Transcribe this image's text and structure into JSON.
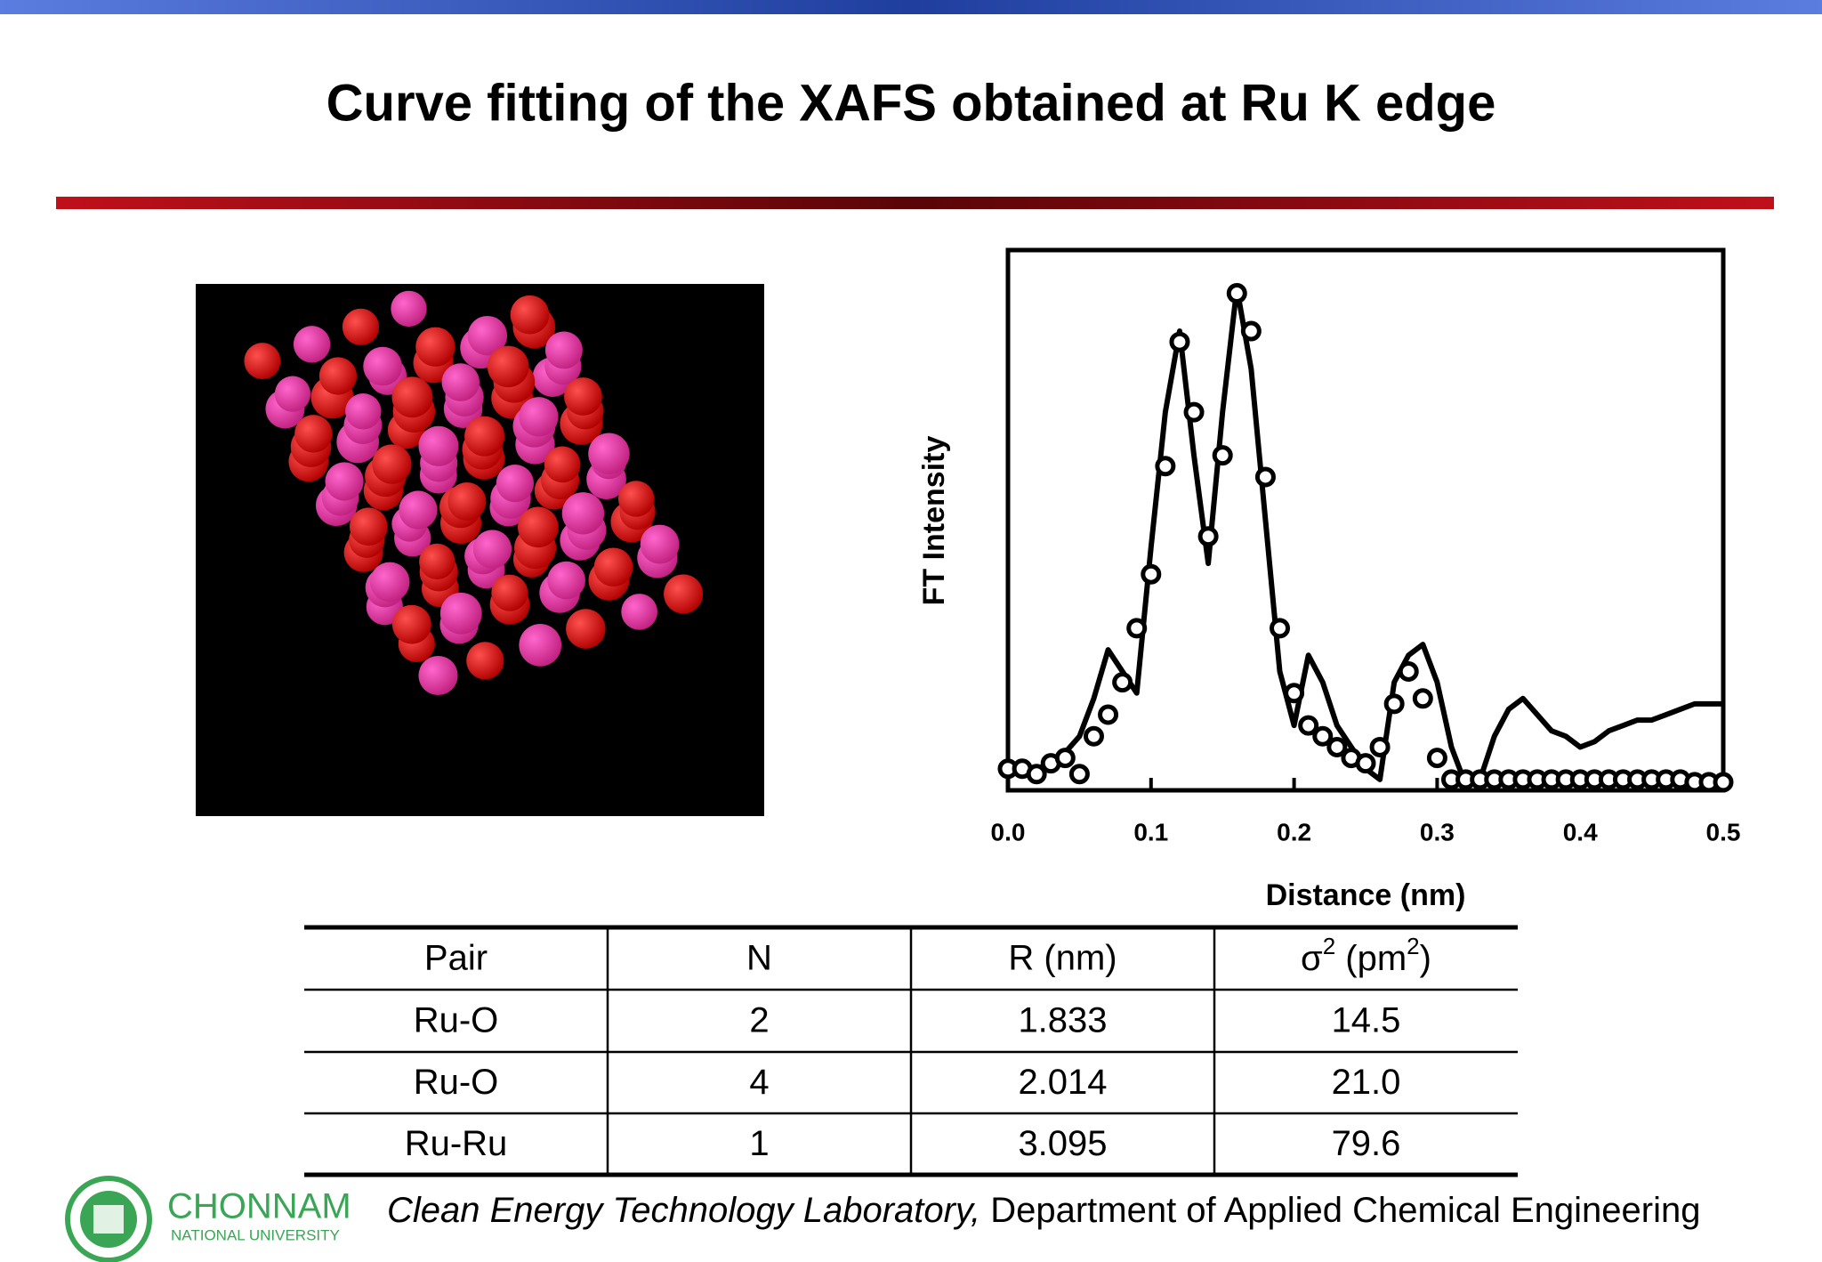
{
  "title": "Curve fitting of the XAFS obtained at Ru K edge",
  "chart_data": {
    "type": "line",
    "ylabel": "FT Intensity",
    "xlabel": "Distance (nm)",
    "xlim": [
      0,
      0.5
    ],
    "xticks": [
      {
        "value": 0,
        "label": "0.0"
      },
      0.1,
      0.2,
      0.3,
      0.4,
      0.5
    ],
    "ylim": [
      0,
      1
    ],
    "x": [
      0,
      0.01,
      0.02,
      0.03,
      0.04,
      0.05,
      0.06,
      0.07,
      0.08,
      0.09,
      0.1,
      0.11,
      0.12,
      0.13,
      0.14,
      0.15,
      0.16,
      0.17,
      0.18,
      0.19,
      0.2,
      0.21,
      0.22,
      0.23,
      0.24,
      0.25,
      0.26,
      0.27,
      0.28,
      0.29,
      0.3,
      0.31,
      0.32,
      0.33,
      0.34,
      0.35,
      0.36,
      0.37,
      0.38,
      0.39,
      0.4,
      0.41,
      0.42,
      0.43,
      0.44,
      0.45,
      0.46,
      0.47,
      0.48,
      0.49,
      0.5
    ],
    "series": [
      {
        "color": "#000000",
        "mode": "line",
        "values": [
          0.04,
          0.03,
          0.04,
          0.05,
          0.07,
          0.1,
          0.17,
          0.26,
          0.22,
          0.18,
          0.45,
          0.7,
          0.85,
          0.62,
          0.42,
          0.7,
          0.93,
          0.78,
          0.5,
          0.22,
          0.12,
          0.25,
          0.2,
          0.12,
          0.08,
          0.04,
          0.02,
          0.2,
          0.25,
          0.27,
          0.2,
          0.08,
          0.01,
          0.02,
          0.1,
          0.15,
          0.17,
          0.14,
          0.11,
          0.1,
          0.08,
          0.09,
          0.11,
          0.12,
          0.13,
          0.13,
          0.14,
          0.15,
          0.16,
          0.16,
          0.16
        ]
      },
      {
        "color": "#000000",
        "mode": "markers",
        "values": [
          0.04,
          0.04,
          0.03,
          0.05,
          0.06,
          0.03,
          0.1,
          0.14,
          0.2,
          0.3,
          0.4,
          0.6,
          0.83,
          0.7,
          0.47,
          0.62,
          0.92,
          0.85,
          0.58,
          0.3,
          0.18,
          0.12,
          0.1,
          0.08,
          0.06,
          0.05,
          0.08,
          0.16,
          0.22,
          0.17,
          0.06,
          0.02,
          0.02,
          0.02,
          0.02,
          0.02,
          0.02,
          0.02,
          0.02,
          0.02,
          0.02,
          0.02,
          0.02,
          0.02,
          0.02,
          0.02,
          0.02,
          0.02,
          0.015,
          0.015,
          0.015
        ]
      }
    ]
  },
  "table": {
    "header": [
      "Pair",
      "N",
      "R (nm)",
      {
        "parts": [
          "σ",
          "2",
          " (pm",
          "2",
          ")"
        ]
      }
    ],
    "rows": [
      [
        "Ru-O",
        "2",
        "1.833",
        "14.5"
      ],
      [
        "Ru-O",
        "4",
        "2.014",
        "21.0"
      ],
      [
        "Ru-Ru",
        "1",
        "3.095",
        "79.6"
      ]
    ]
  },
  "logo": {
    "name": "CHONNAM",
    "subtitle": "NATIONAL UNIVERSITY"
  },
  "footer": {
    "lab": "Clean Energy Technology Laboratory,",
    "department": " Department of Applied Chemical Engineering"
  }
}
